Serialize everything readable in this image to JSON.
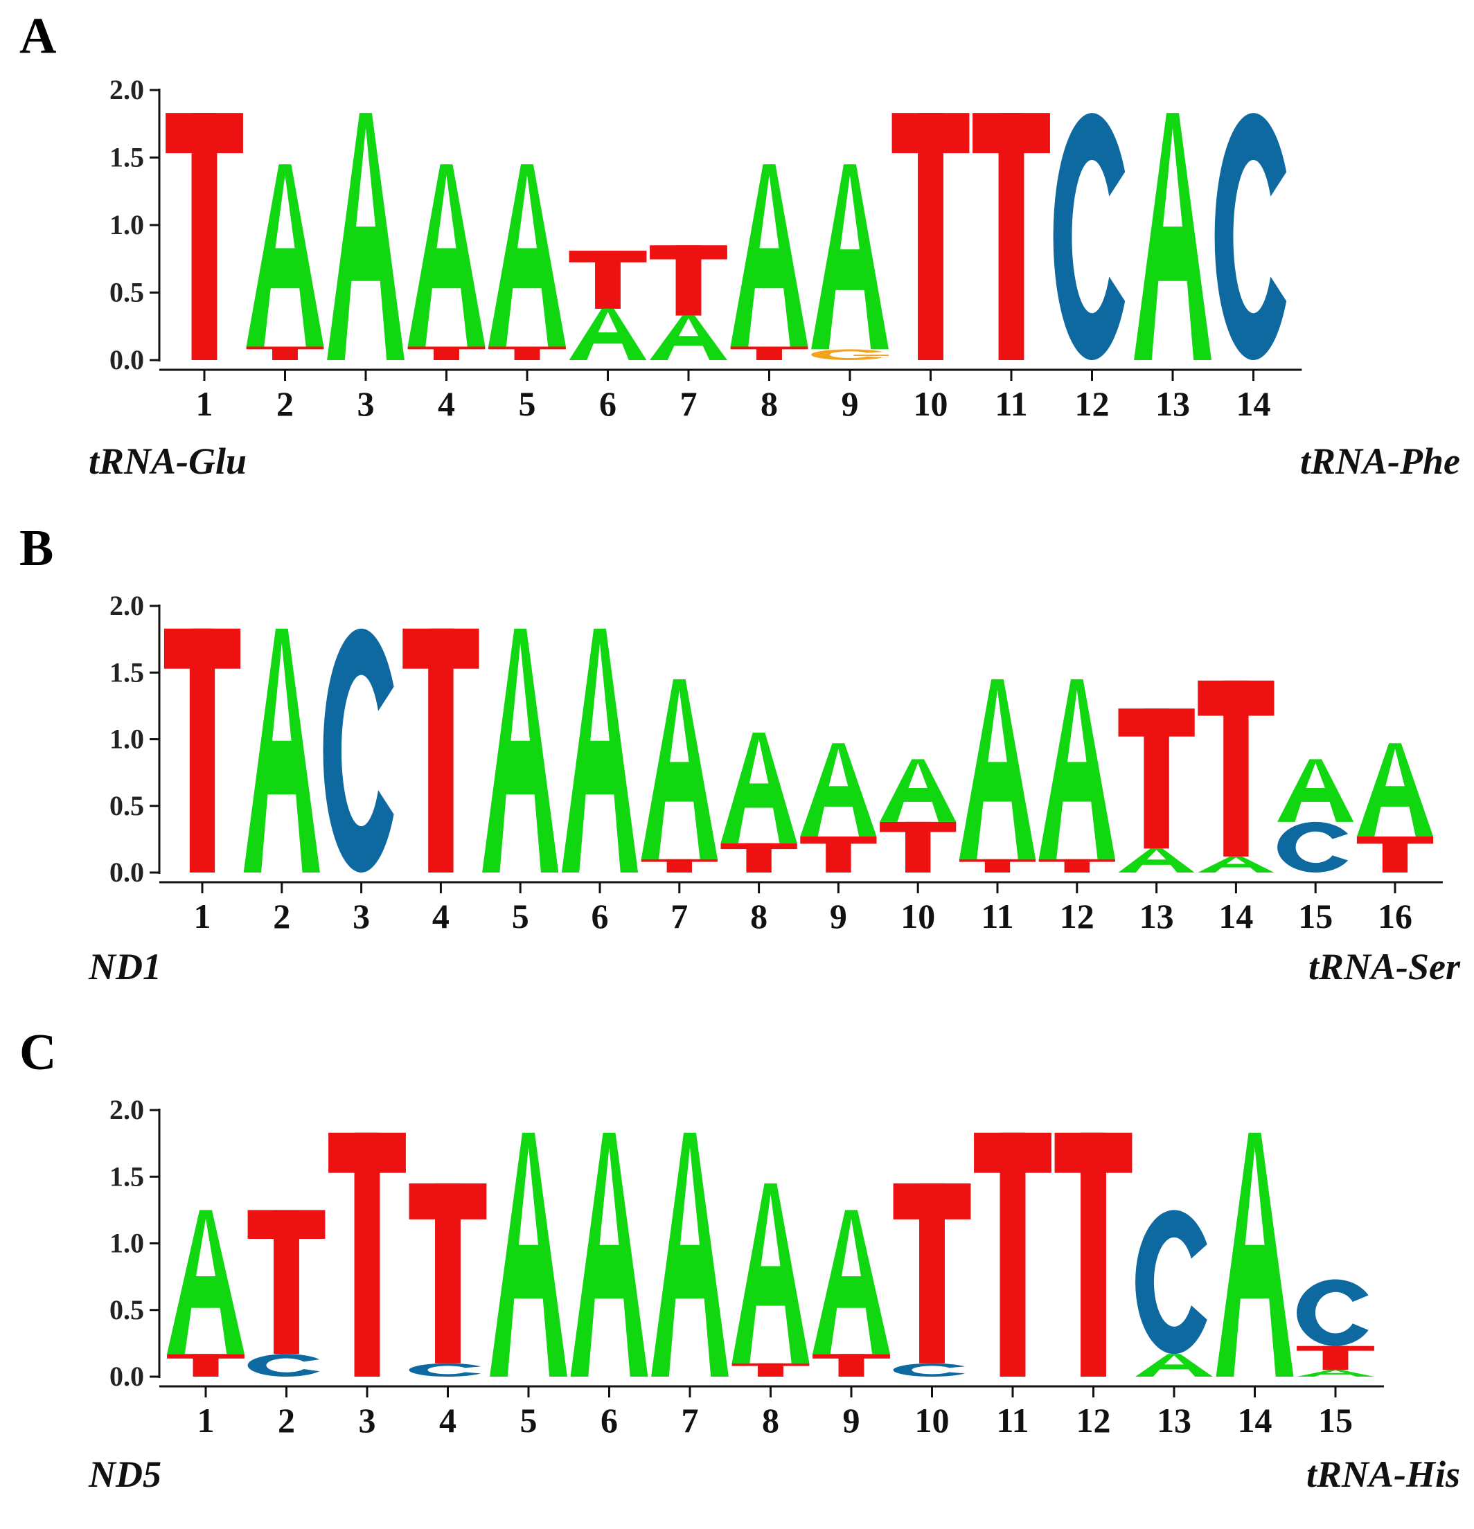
{
  "colors": {
    "A": "#11d711",
    "C": "#0e69a1",
    "G": "#f4a21c",
    "T": "#ee1111",
    "axis": "#111111"
  },
  "chart_data": [
    {
      "type": "sequence-logo",
      "panel": "A",
      "left_label": "tRNA-Glu",
      "right_label": "tRNA-Phe",
      "ylim": [
        0,
        2.0
      ],
      "yticks": [
        "0.0",
        "0.5",
        "1.0",
        "1.5",
        "2.0"
      ],
      "positions": [
        {
          "x": "1",
          "stack": [
            {
              "b": "T",
              "h": 1.83
            }
          ]
        },
        {
          "x": "2",
          "stack": [
            {
              "b": "T",
              "h": 0.1
            },
            {
              "b": "A",
              "h": 1.35
            }
          ]
        },
        {
          "x": "3",
          "stack": [
            {
              "b": "A",
              "h": 1.83
            }
          ]
        },
        {
          "x": "4",
          "stack": [
            {
              "b": "T",
              "h": 0.1
            },
            {
              "b": "A",
              "h": 1.35
            }
          ]
        },
        {
          "x": "5",
          "stack": [
            {
              "b": "T",
              "h": 0.1
            },
            {
              "b": "A",
              "h": 1.35
            }
          ]
        },
        {
          "x": "6",
          "stack": [
            {
              "b": "A",
              "h": 0.38
            },
            {
              "b": "T",
              "h": 0.43
            }
          ]
        },
        {
          "x": "7",
          "stack": [
            {
              "b": "A",
              "h": 0.33
            },
            {
              "b": "T",
              "h": 0.52
            }
          ]
        },
        {
          "x": "8",
          "stack": [
            {
              "b": "T",
              "h": 0.1
            },
            {
              "b": "A",
              "h": 1.35
            }
          ]
        },
        {
          "x": "9",
          "stack": [
            {
              "b": "G",
              "h": 0.08
            },
            {
              "b": "A",
              "h": 1.37
            }
          ]
        },
        {
          "x": "10",
          "stack": [
            {
              "b": "T",
              "h": 1.83
            }
          ]
        },
        {
          "x": "11",
          "stack": [
            {
              "b": "T",
              "h": 1.83
            }
          ]
        },
        {
          "x": "12",
          "stack": [
            {
              "b": "C",
              "h": 1.83
            }
          ]
        },
        {
          "x": "13",
          "stack": [
            {
              "b": "A",
              "h": 1.83
            }
          ]
        },
        {
          "x": "14",
          "stack": [
            {
              "b": "C",
              "h": 1.83
            }
          ]
        }
      ]
    },
    {
      "type": "sequence-logo",
      "panel": "B",
      "left_label": "ND1",
      "right_label": "tRNA-Ser",
      "ylim": [
        0,
        2.0
      ],
      "yticks": [
        "0.0",
        "0.5",
        "1.0",
        "1.5",
        "2.0"
      ],
      "positions": [
        {
          "x": "1",
          "stack": [
            {
              "b": "T",
              "h": 1.83
            }
          ]
        },
        {
          "x": "2",
          "stack": [
            {
              "b": "A",
              "h": 1.83
            }
          ]
        },
        {
          "x": "3",
          "stack": [
            {
              "b": "C",
              "h": 1.83
            }
          ]
        },
        {
          "x": "4",
          "stack": [
            {
              "b": "T",
              "h": 1.83
            }
          ]
        },
        {
          "x": "5",
          "stack": [
            {
              "b": "A",
              "h": 1.83
            }
          ]
        },
        {
          "x": "6",
          "stack": [
            {
              "b": "A",
              "h": 1.83
            }
          ]
        },
        {
          "x": "7",
          "stack": [
            {
              "b": "T",
              "h": 0.1
            },
            {
              "b": "A",
              "h": 1.35
            }
          ]
        },
        {
          "x": "8",
          "stack": [
            {
              "b": "T",
              "h": 0.22
            },
            {
              "b": "A",
              "h": 0.83
            }
          ]
        },
        {
          "x": "9",
          "stack": [
            {
              "b": "T",
              "h": 0.27
            },
            {
              "b": "A",
              "h": 0.7
            }
          ]
        },
        {
          "x": "10",
          "stack": [
            {
              "b": "T",
              "h": 0.38
            },
            {
              "b": "A",
              "h": 0.47
            }
          ]
        },
        {
          "x": "11",
          "stack": [
            {
              "b": "T",
              "h": 0.1
            },
            {
              "b": "A",
              "h": 1.35
            }
          ]
        },
        {
          "x": "12",
          "stack": [
            {
              "b": "T",
              "h": 0.1
            },
            {
              "b": "A",
              "h": 1.35
            }
          ]
        },
        {
          "x": "13",
          "stack": [
            {
              "b": "A",
              "h": 0.18
            },
            {
              "b": "T",
              "h": 1.05
            }
          ]
        },
        {
          "x": "14",
          "stack": [
            {
              "b": "A",
              "h": 0.12
            },
            {
              "b": "T",
              "h": 1.32
            }
          ]
        },
        {
          "x": "15",
          "stack": [
            {
              "b": "C",
              "h": 0.38
            },
            {
              "b": "A",
              "h": 0.47
            }
          ]
        },
        {
          "x": "16",
          "stack": [
            {
              "b": "T",
              "h": 0.27
            },
            {
              "b": "A",
              "h": 0.7
            }
          ]
        }
      ]
    },
    {
      "type": "sequence-logo",
      "panel": "C",
      "left_label": "ND5",
      "right_label": "tRNA-His",
      "ylim": [
        0,
        2.0
      ],
      "yticks": [
        "0.0",
        "0.5",
        "1.0",
        "1.5",
        "2.0"
      ],
      "positions": [
        {
          "x": "1",
          "stack": [
            {
              "b": "T",
              "h": 0.17
            },
            {
              "b": "A",
              "h": 1.08
            }
          ]
        },
        {
          "x": "2",
          "stack": [
            {
              "b": "C",
              "h": 0.17
            },
            {
              "b": "T",
              "h": 1.08
            }
          ]
        },
        {
          "x": "3",
          "stack": [
            {
              "b": "T",
              "h": 1.83
            }
          ]
        },
        {
          "x": "4",
          "stack": [
            {
              "b": "C",
              "h": 0.1
            },
            {
              "b": "T",
              "h": 1.35
            }
          ]
        },
        {
          "x": "5",
          "stack": [
            {
              "b": "A",
              "h": 1.83
            }
          ]
        },
        {
          "x": "6",
          "stack": [
            {
              "b": "A",
              "h": 1.83
            }
          ]
        },
        {
          "x": "7",
          "stack": [
            {
              "b": "A",
              "h": 1.83
            }
          ]
        },
        {
          "x": "8",
          "stack": [
            {
              "b": "T",
              "h": 0.1
            },
            {
              "b": "A",
              "h": 1.35
            }
          ]
        },
        {
          "x": "9",
          "stack": [
            {
              "b": "T",
              "h": 0.17
            },
            {
              "b": "A",
              "h": 1.08
            }
          ]
        },
        {
          "x": "10",
          "stack": [
            {
              "b": "C",
              "h": 0.1
            },
            {
              "b": "T",
              "h": 1.35
            }
          ]
        },
        {
          "x": "11",
          "stack": [
            {
              "b": "T",
              "h": 1.83
            }
          ]
        },
        {
          "x": "12",
          "stack": [
            {
              "b": "T",
              "h": 1.83
            }
          ]
        },
        {
          "x": "13",
          "stack": [
            {
              "b": "A",
              "h": 0.17
            },
            {
              "b": "C",
              "h": 1.08
            }
          ]
        },
        {
          "x": "14",
          "stack": [
            {
              "b": "A",
              "h": 1.83
            }
          ]
        },
        {
          "x": "15",
          "stack": [
            {
              "b": "A",
              "h": 0.05
            },
            {
              "b": "T",
              "h": 0.18
            },
            {
              "b": "C",
              "h": 0.5
            }
          ]
        }
      ]
    }
  ]
}
